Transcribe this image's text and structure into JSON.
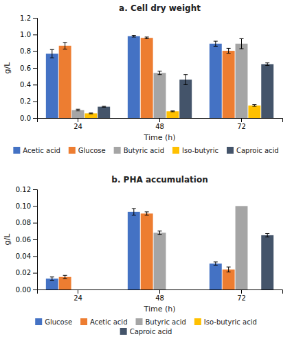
{
  "chart_data": [
    {
      "type": "bar",
      "title": "a. Cell dry weight",
      "xlabel": "Time (h)",
      "ylabel": "g/L",
      "categories": [
        "24",
        "48",
        "72"
      ],
      "series": [
        {
          "name": "Acetic acid",
          "color": "#4472C4",
          "values": [
            0.77,
            0.98,
            0.89
          ],
          "errors": [
            0.05,
            0.01,
            0.03
          ]
        },
        {
          "name": "Glucose",
          "color": "#ED7D31",
          "values": [
            0.865,
            0.96,
            0.805
          ],
          "errors": [
            0.04,
            0.01,
            0.03
          ]
        },
        {
          "name": "Butyric acid",
          "color": "#A5A5A5",
          "values": [
            0.095,
            0.54,
            0.89
          ],
          "errors": [
            0.01,
            0.02,
            0.06
          ]
        },
        {
          "name": "Iso-butyric",
          "color": "#FFC000",
          "values": [
            0.055,
            0.08,
            0.15
          ],
          "errors": [
            0.005,
            0.005,
            0.01
          ]
        },
        {
          "name": "Caproic acid",
          "color": "#44546A",
          "values": [
            0.135,
            0.46,
            0.645
          ],
          "errors": [
            0.005,
            0.06,
            0.015
          ]
        }
      ],
      "ylim": [
        0,
        1.2
      ],
      "yticks": [
        {
          "value": 0,
          "label": "0.0"
        },
        0.2,
        0.4,
        0.6,
        0.8,
        {
          "value": 1.0,
          "label": "1.0"
        },
        1.2
      ],
      "grid": false,
      "legend": "bottom"
    },
    {
      "type": "bar",
      "title": "b. PHA accumulation",
      "xlabel": "Time (h)",
      "ylabel": "g/L",
      "categories": [
        "24",
        "48",
        "72"
      ],
      "series": [
        {
          "name": "Glucose",
          "color": "#4472C4",
          "values": [
            0.013,
            0.093,
            0.031
          ],
          "errors": [
            0.002,
            0.004,
            0.002
          ]
        },
        {
          "name": "Acetic acid",
          "color": "#ED7D31",
          "values": [
            0.015,
            0.091,
            0.024
          ],
          "errors": [
            0.002,
            0.002,
            0.003
          ]
        },
        {
          "name": "Butyric acid",
          "color": "#A5A5A5",
          "values": [
            0.0,
            0.068,
            0.1
          ],
          "errors": [
            0.0,
            0.002,
            0.0
          ]
        },
        {
          "name": "Iso-butyric acid",
          "color": "#FFC000",
          "values": [
            0.0,
            0.0,
            0.0
          ],
          "errors": [
            0.0,
            0.0,
            0.0
          ]
        },
        {
          "name": "Caproic acid",
          "color": "#44546A",
          "values": [
            0.0,
            0.0,
            0.065
          ],
          "errors": [
            0.0,
            0.0,
            0.002
          ]
        }
      ],
      "ylim": [
        0,
        0.12
      ],
      "yticks": [
        {
          "value": 0,
          "label": "0.00"
        },
        0.02,
        0.04,
        0.06,
        0.08,
        {
          "value": 0.1,
          "label": "0.10"
        },
        0.12
      ],
      "grid": false,
      "legend": "bottom"
    }
  ]
}
